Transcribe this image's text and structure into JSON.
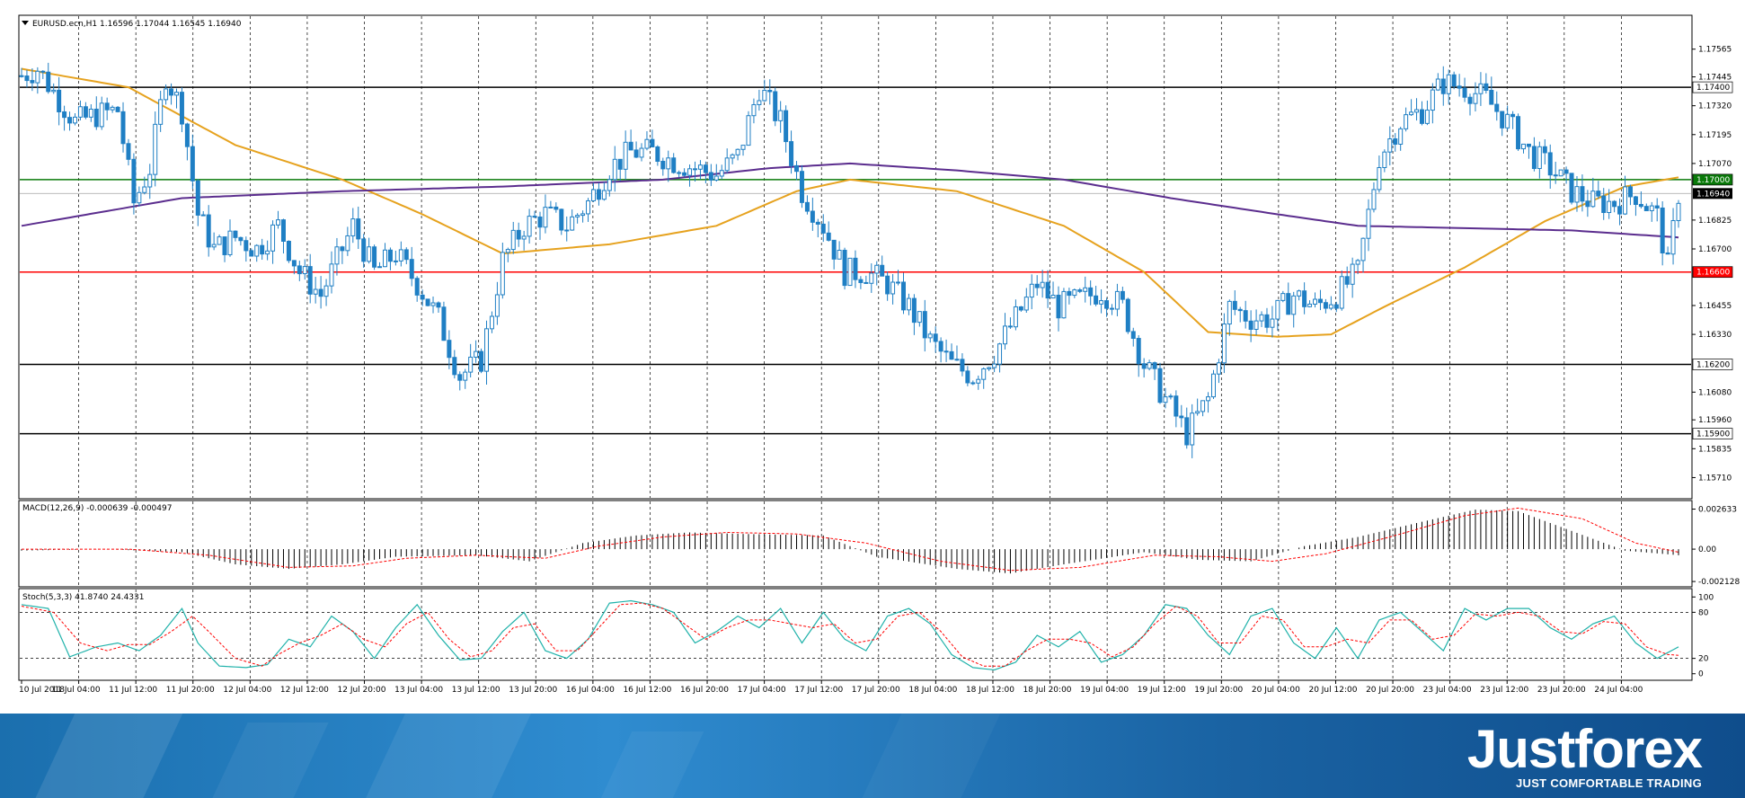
{
  "chart_data": [
    {
      "type": "candlestick",
      "title": "EURUSD.ecn,H1  1.16596 1.17044 1.16545 1.16940",
      "ylim": [
        1.1563,
        1.177
      ],
      "y_ticks": [
        "1.17565",
        "1.17445",
        "1.17320",
        "1.17195",
        "1.17070",
        "1.16825",
        "1.16700",
        "1.16455",
        "1.16330",
        "1.16080",
        "1.15960",
        "1.15835",
        "1.15710"
      ],
      "levels": [
        {
          "value": 1.174,
          "label": "1.17400",
          "color": "#000000"
        },
        {
          "value": 1.17,
          "label": "1.17000",
          "color": "#0a7a0a"
        },
        {
          "value": 1.166,
          "label": "1.16600",
          "color": "#ff0000"
        },
        {
          "value": 1.162,
          "label": "1.16200",
          "color": "#000000"
        },
        {
          "value": 1.159,
          "label": "1.15900",
          "color": "#000000"
        }
      ],
      "current_price": {
        "value": 1.1694,
        "label": "1.16940"
      },
      "x_labels": [
        "10 Jul 2018",
        "11 Jul 04:00",
        "11 Jul 12:00",
        "11 Jul 20:00",
        "12 Jul 04:00",
        "12 Jul 12:00",
        "12 Jul 20:00",
        "13 Jul 04:00",
        "13 Jul 12:00",
        "13 Jul 20:00",
        "16 Jul 04:00",
        "16 Jul 12:00",
        "16 Jul 20:00",
        "17 Jul 04:00",
        "17 Jul 12:00",
        "17 Jul 20:00",
        "18 Jul 04:00",
        "18 Jul 12:00",
        "18 Jul 20:00",
        "19 Jul 04:00",
        "19 Jul 12:00",
        "19 Jul 20:00",
        "20 Jul 04:00",
        "20 Jul 12:00",
        "20 Jul 20:00",
        "23 Jul 04:00",
        "23 Jul 12:00",
        "23 Jul 20:00",
        "24 Jul 04:00"
      ],
      "close_path": [
        [
          0,
          1.1745
        ],
        [
          3,
          1.1748
        ],
        [
          6,
          1.1738
        ],
        [
          10,
          1.1725
        ],
        [
          14,
          1.1728
        ],
        [
          18,
          1.173
        ],
        [
          21,
          1.169
        ],
        [
          24,
          1.1705
        ],
        [
          27,
          1.1745
        ],
        [
          30,
          1.173
        ],
        [
          33,
          1.1685
        ],
        [
          36,
          1.167
        ],
        [
          40,
          1.1675
        ],
        [
          44,
          1.167
        ],
        [
          48,
          1.168
        ],
        [
          52,
          1.166
        ],
        [
          56,
          1.165
        ],
        [
          58,
          1.166
        ],
        [
          62,
          1.168
        ],
        [
          66,
          1.166
        ],
        [
          70,
          1.1668
        ],
        [
          74,
          1.1655
        ],
        [
          78,
          1.164
        ],
        [
          82,
          1.1615
        ],
        [
          86,
          1.1622
        ],
        [
          90,
          1.1665
        ],
        [
          94,
          1.168
        ],
        [
          98,
          1.1685
        ],
        [
          102,
          1.168
        ],
        [
          106,
          1.169
        ],
        [
          110,
          1.1705
        ],
        [
          114,
          1.1712
        ],
        [
          118,
          1.1712
        ],
        [
          122,
          1.1708
        ],
        [
          126,
          1.1705
        ],
        [
          130,
          1.1702
        ],
        [
          134,
          1.171
        ],
        [
          138,
          1.174
        ],
        [
          142,
          1.1725
        ],
        [
          146,
          1.1695
        ],
        [
          150,
          1.168
        ],
        [
          154,
          1.166
        ],
        [
          158,
          1.166
        ],
        [
          162,
          1.1655
        ],
        [
          166,
          1.1645
        ],
        [
          170,
          1.163
        ],
        [
          174,
          1.162
        ],
        [
          178,
          1.1615
        ],
        [
          182,
          1.1625
        ],
        [
          186,
          1.164
        ],
        [
          190,
          1.1655
        ],
        [
          194,
          1.1645
        ],
        [
          198,
          1.1648
        ],
        [
          202,
          1.1652
        ],
        [
          206,
          1.1645
        ],
        [
          210,
          1.162
        ],
        [
          214,
          1.1605
        ],
        [
          218,
          1.159
        ],
        [
          222,
          1.1605
        ],
        [
          226,
          1.1645
        ],
        [
          230,
          1.164
        ],
        [
          234,
          1.164
        ],
        [
          238,
          1.165
        ],
        [
          242,
          1.1645
        ],
        [
          246,
          1.165
        ],
        [
          250,
          1.166
        ],
        [
          254,
          1.171
        ],
        [
          258,
          1.1725
        ],
        [
          262,
          1.173
        ],
        [
          266,
          1.1742
        ],
        [
          270,
          1.174
        ],
        [
          274,
          1.1735
        ],
        [
          278,
          1.1725
        ],
        [
          282,
          1.1712
        ],
        [
          286,
          1.1705
        ],
        [
          290,
          1.1695
        ],
        [
          294,
          1.169
        ],
        [
          298,
          1.169
        ],
        [
          302,
          1.1694
        ],
        [
          306,
          1.1684
        ],
        [
          308,
          1.1662
        ],
        [
          310,
          1.1694
        ]
      ],
      "moving_averages": [
        {
          "color": "#e6a21e",
          "values": [
            [
              0,
              1.1748
            ],
            [
              20,
              1.174
            ],
            [
              40,
              1.1715
            ],
            [
              60,
              1.17
            ],
            [
              75,
              1.1685
            ],
            [
              90,
              1.1668
            ],
            [
              110,
              1.1672
            ],
            [
              130,
              1.168
            ],
            [
              145,
              1.1695
            ],
            [
              155,
              1.17
            ],
            [
              175,
              1.1695
            ],
            [
              195,
              1.168
            ],
            [
              210,
              1.166
            ],
            [
              222,
              1.1634
            ],
            [
              235,
              1.1632
            ],
            [
              245,
              1.1633
            ],
            [
              255,
              1.1645
            ],
            [
              270,
              1.1662
            ],
            [
              285,
              1.1682
            ],
            [
              300,
              1.1697
            ],
            [
              310,
              1.1701
            ]
          ]
        },
        {
          "color": "#5b2d8e",
          "values": [
            [
              0,
              1.168
            ],
            [
              30,
              1.1692
            ],
            [
              60,
              1.1695
            ],
            [
              90,
              1.1697
            ],
            [
              120,
              1.17
            ],
            [
              140,
              1.1705
            ],
            [
              155,
              1.1707
            ],
            [
              175,
              1.1704
            ],
            [
              195,
              1.17
            ],
            [
              215,
              1.1692
            ],
            [
              235,
              1.1685
            ],
            [
              250,
              1.168
            ],
            [
              270,
              1.1679
            ],
            [
              290,
              1.1678
            ],
            [
              310,
              1.1675
            ]
          ]
        }
      ]
    },
    {
      "type": "histogram",
      "title": "MACD(12,26,9) -0.000639 -0.000497",
      "ylim": [
        -0.0023,
        0.0029
      ],
      "y_ticks": [
        "0.002633",
        "0.00",
        "-0.002128"
      ],
      "histogram_path": [
        [
          0,
          -0.0001
        ],
        [
          15,
          0.0
        ],
        [
          30,
          -0.0002
        ],
        [
          40,
          -0.001
        ],
        [
          50,
          -0.0013
        ],
        [
          60,
          -0.001
        ],
        [
          70,
          -0.0005
        ],
        [
          85,
          -0.0004
        ],
        [
          95,
          -0.0008
        ],
        [
          105,
          0.0004
        ],
        [
          115,
          0.0009
        ],
        [
          125,
          0.0011
        ],
        [
          135,
          0.001
        ],
        [
          150,
          0.0009
        ],
        [
          160,
          -0.0005
        ],
        [
          175,
          -0.0013
        ],
        [
          185,
          -0.0016
        ],
        [
          195,
          -0.001
        ],
        [
          210,
          -0.0002
        ],
        [
          220,
          -0.0007
        ],
        [
          230,
          -0.0008
        ],
        [
          240,
          0.0002
        ],
        [
          250,
          0.0008
        ],
        [
          262,
          0.0018
        ],
        [
          272,
          0.0026
        ],
        [
          280,
          0.0025
        ],
        [
          290,
          0.0012
        ],
        [
          300,
          -0.0001
        ],
        [
          310,
          -0.0004
        ]
      ],
      "signal_path": [
        [
          0,
          0.0
        ],
        [
          20,
          0.0
        ],
        [
          35,
          -0.0004
        ],
        [
          50,
          -0.0012
        ],
        [
          62,
          -0.0011
        ],
        [
          72,
          -0.0006
        ],
        [
          85,
          -0.0004
        ],
        [
          98,
          -0.0006
        ],
        [
          108,
          0.0002
        ],
        [
          120,
          0.0008
        ],
        [
          132,
          0.0011
        ],
        [
          145,
          0.001
        ],
        [
          158,
          0.0004
        ],
        [
          172,
          -0.0008
        ],
        [
          185,
          -0.0014
        ],
        [
          198,
          -0.0012
        ],
        [
          212,
          -0.0004
        ],
        [
          224,
          -0.0005
        ],
        [
          234,
          -0.0008
        ],
        [
          244,
          -0.0003
        ],
        [
          256,
          0.0008
        ],
        [
          270,
          0.0022
        ],
        [
          280,
          0.0027
        ],
        [
          292,
          0.002
        ],
        [
          302,
          0.0004
        ],
        [
          310,
          -0.0002
        ]
      ]
    },
    {
      "type": "line",
      "title": "Stoch(5,3,3) 41.8740 24.4331",
      "ylim": [
        -5,
        105
      ],
      "y_ticks": [
        "100",
        "80",
        "20",
        "0"
      ],
      "k_path": [
        [
          0,
          90
        ],
        [
          5,
          85
        ],
        [
          9,
          22
        ],
        [
          14,
          35
        ],
        [
          18,
          40
        ],
        [
          22,
          30
        ],
        [
          26,
          50
        ],
        [
          30,
          85
        ],
        [
          33,
          40
        ],
        [
          37,
          10
        ],
        [
          42,
          8
        ],
        [
          46,
          12
        ],
        [
          50,
          45
        ],
        [
          54,
          35
        ],
        [
          58,
          75
        ],
        [
          62,
          55
        ],
        [
          66,
          20
        ],
        [
          70,
          60
        ],
        [
          74,
          90
        ],
        [
          78,
          50
        ],
        [
          82,
          18
        ],
        [
          86,
          20
        ],
        [
          90,
          55
        ],
        [
          94,
          80
        ],
        [
          98,
          30
        ],
        [
          102,
          20
        ],
        [
          106,
          45
        ],
        [
          110,
          92
        ],
        [
          114,
          95
        ],
        [
          118,
          90
        ],
        [
          122,
          80
        ],
        [
          126,
          40
        ],
        [
          130,
          55
        ],
        [
          134,
          75
        ],
        [
          138,
          60
        ],
        [
          142,
          85
        ],
        [
          146,
          40
        ],
        [
          150,
          80
        ],
        [
          154,
          45
        ],
        [
          158,
          30
        ],
        [
          162,
          75
        ],
        [
          166,
          85
        ],
        [
          170,
          65
        ],
        [
          174,
          25
        ],
        [
          178,
          8
        ],
        [
          182,
          5
        ],
        [
          186,
          15
        ],
        [
          190,
          50
        ],
        [
          194,
          35
        ],
        [
          198,
          55
        ],
        [
          202,
          15
        ],
        [
          206,
          25
        ],
        [
          210,
          50
        ],
        [
          214,
          90
        ],
        [
          218,
          85
        ],
        [
          222,
          50
        ],
        [
          226,
          25
        ],
        [
          230,
          75
        ],
        [
          234,
          85
        ],
        [
          238,
          40
        ],
        [
          242,
          20
        ],
        [
          246,
          60
        ],
        [
          250,
          20
        ],
        [
          254,
          70
        ],
        [
          258,
          80
        ],
        [
          262,
          55
        ],
        [
          266,
          30
        ],
        [
          270,
          85
        ],
        [
          274,
          70
        ],
        [
          278,
          85
        ],
        [
          282,
          85
        ],
        [
          286,
          60
        ],
        [
          290,
          45
        ],
        [
          294,
          65
        ],
        [
          298,
          75
        ],
        [
          302,
          40
        ],
        [
          306,
          20
        ],
        [
          310,
          35
        ]
      ],
      "d_path": [
        [
          0,
          88
        ],
        [
          6,
          80
        ],
        [
          11,
          40
        ],
        [
          16,
          30
        ],
        [
          20,
          38
        ],
        [
          24,
          38
        ],
        [
          28,
          55
        ],
        [
          32,
          75
        ],
        [
          35,
          55
        ],
        [
          40,
          20
        ],
        [
          45,
          10
        ],
        [
          48,
          25
        ],
        [
          52,
          40
        ],
        [
          56,
          50
        ],
        [
          60,
          65
        ],
        [
          64,
          45
        ],
        [
          68,
          35
        ],
        [
          72,
          65
        ],
        [
          76,
          80
        ],
        [
          80,
          45
        ],
        [
          84,
          22
        ],
        [
          88,
          30
        ],
        [
          92,
          60
        ],
        [
          96,
          65
        ],
        [
          100,
          30
        ],
        [
          104,
          30
        ],
        [
          108,
          60
        ],
        [
          112,
          90
        ],
        [
          116,
          92
        ],
        [
          120,
          85
        ],
        [
          124,
          65
        ],
        [
          128,
          45
        ],
        [
          132,
          60
        ],
        [
          136,
          70
        ],
        [
          140,
          70
        ],
        [
          144,
          65
        ],
        [
          148,
          60
        ],
        [
          152,
          65
        ],
        [
          156,
          40
        ],
        [
          160,
          45
        ],
        [
          164,
          75
        ],
        [
          168,
          80
        ],
        [
          172,
          55
        ],
        [
          176,
          22
        ],
        [
          180,
          10
        ],
        [
          184,
          10
        ],
        [
          188,
          30
        ],
        [
          192,
          45
        ],
        [
          196,
          45
        ],
        [
          200,
          40
        ],
        [
          204,
          22
        ],
        [
          208,
          35
        ],
        [
          212,
          65
        ],
        [
          216,
          88
        ],
        [
          220,
          75
        ],
        [
          224,
          40
        ],
        [
          228,
          40
        ],
        [
          232,
          75
        ],
        [
          236,
          70
        ],
        [
          240,
          35
        ],
        [
          244,
          35
        ],
        [
          248,
          45
        ],
        [
          252,
          40
        ],
        [
          256,
          70
        ],
        [
          260,
          70
        ],
        [
          264,
          45
        ],
        [
          268,
          50
        ],
        [
          272,
          78
        ],
        [
          276,
          75
        ],
        [
          280,
          80
        ],
        [
          284,
          75
        ],
        [
          288,
          55
        ],
        [
          292,
          52
        ],
        [
          296,
          68
        ],
        [
          300,
          65
        ],
        [
          304,
          35
        ],
        [
          308,
          25
        ],
        [
          310,
          24
        ]
      ]
    }
  ],
  "brand": {
    "name": "Justforex",
    "tagline": "JUST COMFORTABLE TRADING"
  }
}
